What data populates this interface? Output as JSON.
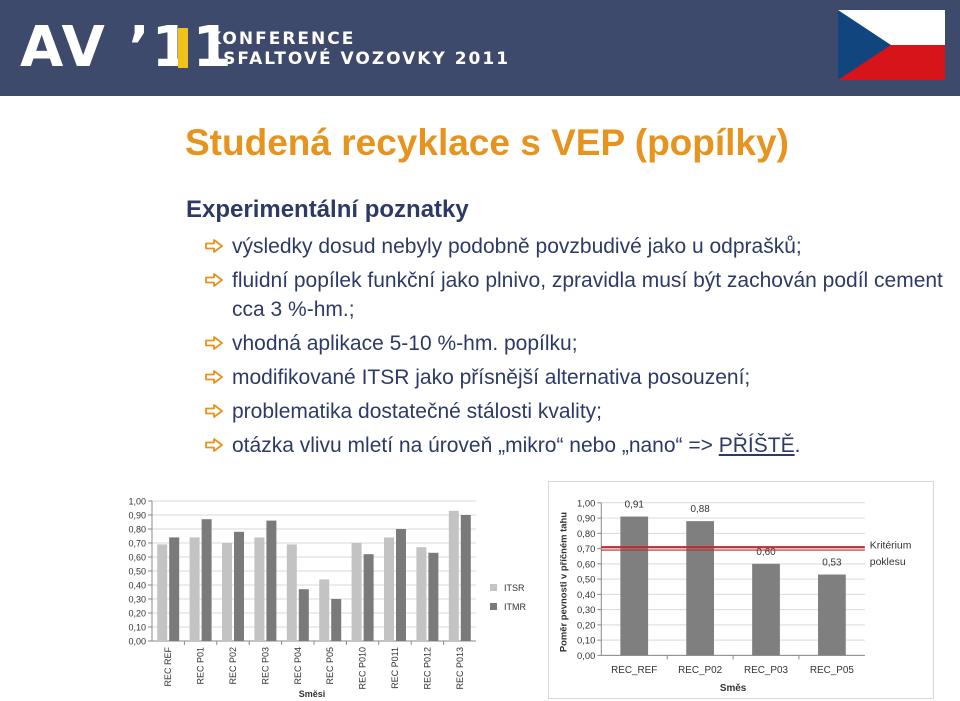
{
  "header": {
    "logo_av": "AV ’11",
    "conf_line1": "KONFERENCE",
    "conf_line2": "ASFALTOVÉ VOZOVKY 2011",
    "colors": {
      "bg": "#3d4a6b",
      "accent": "#f0c21a"
    },
    "flag_icon": "czech-flag-icon"
  },
  "title": "Studená recyklace s VEP (popílky)",
  "subtitle": "Experimentální poznatky",
  "bullets": [
    "výsledky dosud nebyly podobně povzbudivé jako u odprašků;",
    "fluidní popílek funkční jako plnivo, zpravidla musí být zachován podíl cement cca 3 %-hm.;",
    "vhodná aplikace 5-10 %-hm. popílku;",
    "modifikované ITSR jako přísnější alternativa posouzení;",
    "problematika dostatečné stálosti kvality;"
  ],
  "bullet_last": {
    "text": "otázka vlivu mletí na úroveň „mikro“ nebo „nano“ => ",
    "link": "PŘÍŠTĚ",
    "suffix": "."
  },
  "chart_data": [
    {
      "type": "bar",
      "categories": [
        "REC REF",
        "REC P01",
        "REC P02",
        "REC P03",
        "REC P04",
        "REC P05",
        "REC P010",
        "REC P011",
        "REC P012",
        "REC P013"
      ],
      "series": [
        {
          "name": "ITSR",
          "values": [
            0.69,
            0.74,
            0.7,
            0.74,
            0.69,
            0.44,
            0.7,
            0.74,
            0.67,
            0.93
          ],
          "color": "#c3c3c3"
        },
        {
          "name": "ITMR",
          "values": [
            0.74,
            0.87,
            0.78,
            0.86,
            0.37,
            0.3,
            0.62,
            0.8,
            0.63,
            0.9
          ],
          "color": "#7a7a7a"
        }
      ],
      "ylim": [
        0,
        1
      ],
      "yticks": [
        "0,00",
        "0,10",
        "0,20",
        "0,30",
        "0,40",
        "0,50",
        "0,60",
        "0,70",
        "0,80",
        "0,90",
        "1,00"
      ],
      "xlabel": "Směsi",
      "ylabel": "",
      "grid": true,
      "legend": "right"
    },
    {
      "type": "bar",
      "categories": [
        "REC_REF",
        "REC_P02",
        "REC_P03",
        "REC_P05"
      ],
      "values": [
        0.91,
        0.88,
        0.6,
        0.53
      ],
      "labels": [
        "0,91",
        "0,88",
        "0,60",
        "0,53"
      ],
      "color": "#7f7f7f",
      "ylim": [
        0,
        1
      ],
      "yticks": [
        "0,00",
        "0,10",
        "0,20",
        "0,30",
        "0,40",
        "0,50",
        "0,60",
        "0,70",
        "0,80",
        "0,90",
        "1,00"
      ],
      "xlabel": "Směs",
      "ylabel": "Poměr pevnosti v příčném tahu",
      "criterion": {
        "value": 0.7,
        "label_line1": "Kritérium",
        "label_line2": "poklesu",
        "color": "#c0292d"
      },
      "grid": true
    }
  ]
}
